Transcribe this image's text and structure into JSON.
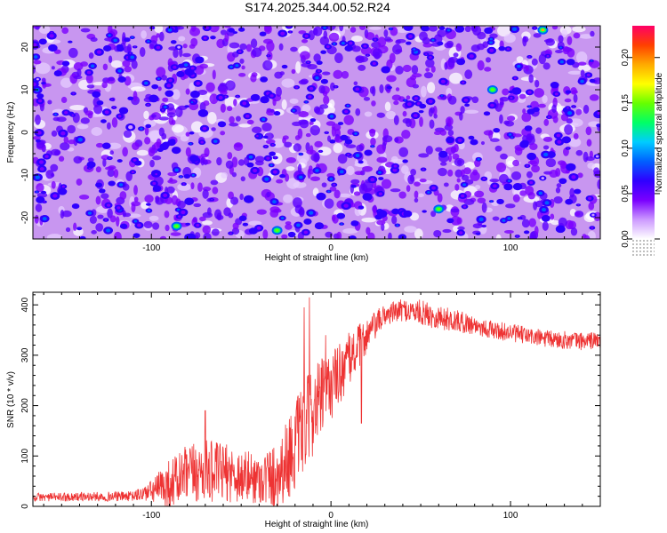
{
  "page": {
    "title": "S174.2025.344.00.52.R24"
  },
  "chart_data": [
    {
      "type": "heatmap",
      "xlabel": "Height of straight line (km)",
      "ylabel": "Frequency (Hz)",
      "xlim": [
        -166,
        150
      ],
      "ylim": [
        -25,
        25
      ],
      "xticks": [
        -100,
        0,
        100
      ],
      "yticks": [
        -20,
        -10,
        0,
        10,
        20
      ],
      "colorbar": {
        "label": "Normalized spectral amplitude",
        "range": [
          0,
          0.235
        ],
        "ticks": [
          "0.00",
          "0.05",
          "0.10",
          "0.15",
          "0.20"
        ],
        "colors": [
          "#ffffff",
          "#cc99ff",
          "#7a00ff",
          "#2f00ff",
          "#0060ff",
          "#00ccff",
          "#00ff66",
          "#66ff00",
          "#ffff00",
          "#ffaa00",
          "#ff4000",
          "#ff0066"
        ]
      },
      "background": "#c896f0",
      "description_values": {
        "typical_amplitude": 0.04,
        "max_amplitude": 0.23,
        "hotspots_km_hz": [
          [
            118,
            24
          ],
          [
            -86,
            -22
          ],
          [
            90,
            10
          ],
          [
            -30,
            -23
          ],
          [
            60,
            -18
          ]
        ]
      }
    },
    {
      "type": "line",
      "xlabel": "Height of straight line (km)",
      "ylabel": "SNR (10 * v/v)",
      "xlim": [
        -166,
        150
      ],
      "ylim": [
        0,
        425
      ],
      "xticks": [
        -100,
        0,
        100
      ],
      "yticks": [
        0,
        100,
        200,
        300,
        400
      ],
      "color": "#ee3333",
      "profile": {
        "x": [
          -166,
          -110,
          -100,
          -90,
          -80,
          -70,
          -60,
          -50,
          -40,
          -30,
          -20,
          -10,
          0,
          10,
          20,
          30,
          40,
          50,
          60,
          70,
          80,
          90,
          100,
          110,
          120,
          130,
          140,
          150
        ],
        "mean": [
          18,
          20,
          30,
          45,
          62,
          70,
          68,
          60,
          55,
          60,
          120,
          190,
          240,
          290,
          340,
          380,
          390,
          385,
          375,
          368,
          360,
          350,
          345,
          338,
          332,
          330,
          328,
          330
        ],
        "noise": [
          8,
          10,
          22,
          50,
          60,
          62,
          58,
          55,
          50,
          70,
          90,
          90,
          70,
          55,
          35,
          22,
          22,
          25,
          25,
          22,
          20,
          18,
          18,
          18,
          18,
          18,
          18,
          18
        ]
      },
      "spikes_km_snr": [
        [
          -12,
          415
        ],
        [
          -15,
          395
        ],
        [
          -3,
          340
        ],
        [
          17,
          165
        ],
        [
          -70,
          190
        ]
      ]
    }
  ]
}
